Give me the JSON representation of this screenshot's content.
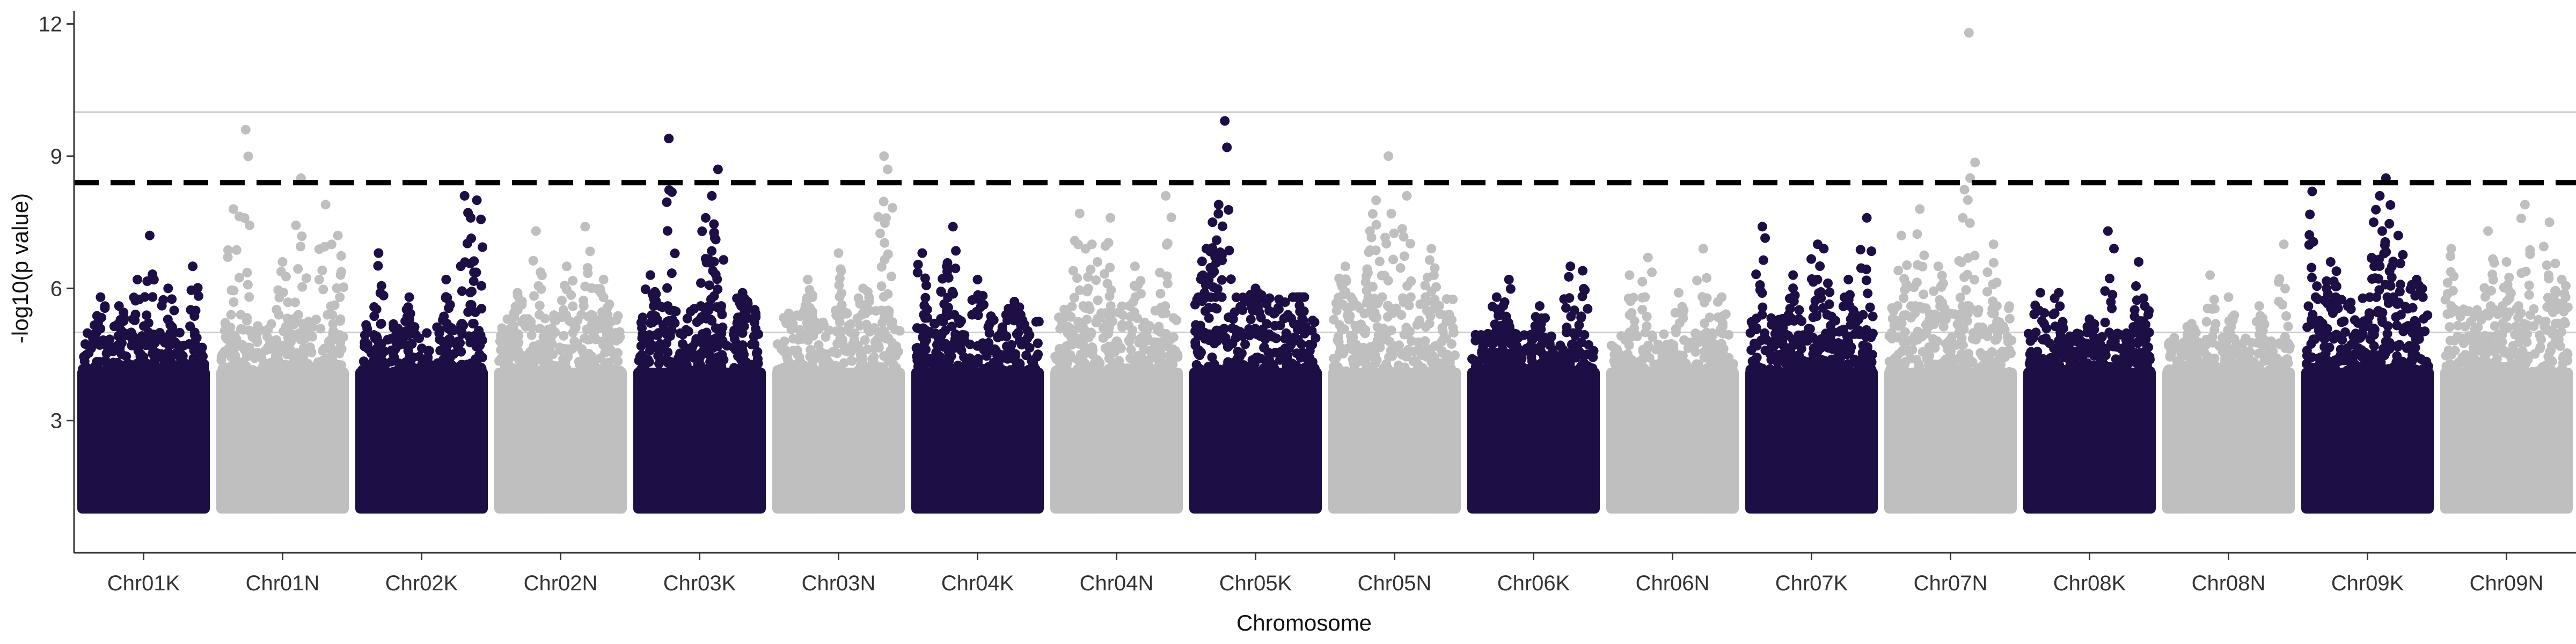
{
  "chart_data": {
    "type": "scatter",
    "title": "",
    "xlabel": "Chromosome",
    "ylabel": "-log10(p value)",
    "ylim": [
      0,
      12.3
    ],
    "yticks": [
      3,
      6,
      9,
      12
    ],
    "reference_lines": [
      5,
      10
    ],
    "threshold_line": 8.4,
    "grid": false,
    "legend": "none",
    "colors": {
      "dark": "#1d0f45",
      "light": "#bfbfbf",
      "threshold": "#000000",
      "reference": "#cccccc"
    },
    "categories": [
      "Chr01K",
      "Chr01N",
      "Chr02K",
      "Chr02N",
      "Chr03K",
      "Chr03N",
      "Chr04K",
      "Chr04N",
      "Chr05K",
      "Chr05N",
      "Chr06K",
      "Chr06N",
      "Chr07K",
      "Chr07N",
      "Chr08K",
      "Chr08N",
      "Chr09K",
      "Chr09N"
    ],
    "series": [
      {
        "category": "Chr01K",
        "color": "dark",
        "base_max": 5.0,
        "peak_max": 7.2,
        "top_points": [
          [
            0.15,
            5.8
          ],
          [
            0.3,
            5.6
          ],
          [
            0.45,
            6.2
          ],
          [
            0.55,
            7.2
          ],
          [
            0.7,
            6.0
          ],
          [
            0.9,
            6.5
          ]
        ]
      },
      {
        "category": "Chr01N",
        "color": "light",
        "base_max": 5.4,
        "peak_max": 9.6,
        "top_points": [
          [
            0.1,
            7.8
          ],
          [
            0.2,
            9.6
          ],
          [
            0.65,
            8.5
          ],
          [
            0.85,
            7.9
          ],
          [
            0.95,
            7.2
          ],
          [
            0.5,
            6.6
          ]
        ]
      },
      {
        "category": "Chr02K",
        "color": "dark",
        "base_max": 5.2,
        "peak_max": 8.1,
        "top_points": [
          [
            0.15,
            6.8
          ],
          [
            0.4,
            5.8
          ],
          [
            0.85,
            8.1
          ],
          [
            0.95,
            8.0
          ],
          [
            0.9,
            7.6
          ],
          [
            0.7,
            6.2
          ]
        ]
      },
      {
        "category": "Chr02N",
        "color": "light",
        "base_max": 5.4,
        "peak_max": 7.4,
        "top_points": [
          [
            0.3,
            7.3
          ],
          [
            0.7,
            7.4
          ],
          [
            0.55,
            6.5
          ],
          [
            0.85,
            6.2
          ],
          [
            0.15,
            5.9
          ]
        ]
      },
      {
        "category": "Chr03K",
        "color": "dark",
        "base_max": 5.6,
        "peak_max": 9.4,
        "top_points": [
          [
            0.25,
            9.4
          ],
          [
            0.65,
            8.7
          ],
          [
            0.6,
            8.1
          ],
          [
            0.55,
            7.6
          ],
          [
            0.1,
            6.3
          ],
          [
            0.85,
            5.9
          ]
        ]
      },
      {
        "category": "Chr03N",
        "color": "light",
        "base_max": 5.5,
        "peak_max": 9.0,
        "top_points": [
          [
            0.87,
            9.0
          ],
          [
            0.9,
            8.7
          ],
          [
            0.5,
            6.8
          ],
          [
            0.25,
            6.2
          ],
          [
            0.7,
            6.0
          ]
        ]
      },
      {
        "category": "Chr04K",
        "color": "dark",
        "base_max": 5.4,
        "peak_max": 7.4,
        "top_points": [
          [
            0.05,
            6.8
          ],
          [
            0.3,
            7.4
          ],
          [
            0.25,
            6.5
          ],
          [
            0.5,
            6.2
          ],
          [
            0.8,
            5.7
          ]
        ]
      },
      {
        "category": "Chr04N",
        "color": "light",
        "base_max": 5.6,
        "peak_max": 8.1,
        "top_points": [
          [
            0.2,
            7.7
          ],
          [
            0.45,
            7.6
          ],
          [
            0.9,
            8.1
          ],
          [
            0.3,
            7.0
          ],
          [
            0.65,
            6.5
          ]
        ]
      },
      {
        "category": "Chr05K",
        "color": "dark",
        "base_max": 5.8,
        "peak_max": 9.8,
        "top_points": [
          [
            0.25,
            9.8
          ],
          [
            0.2,
            7.9
          ],
          [
            0.15,
            7.5
          ],
          [
            0.1,
            6.9
          ],
          [
            0.5,
            6.0
          ],
          [
            0.85,
            5.8
          ]
        ]
      },
      {
        "category": "Chr05N",
        "color": "light",
        "base_max": 5.8,
        "peak_max": 9.0,
        "top_points": [
          [
            0.45,
            9.0
          ],
          [
            0.35,
            8.0
          ],
          [
            0.3,
            7.3
          ],
          [
            0.6,
            8.1
          ],
          [
            0.8,
            6.9
          ],
          [
            0.1,
            6.5
          ]
        ]
      },
      {
        "category": "Chr06K",
        "color": "dark",
        "base_max": 5.0,
        "peak_max": 6.5,
        "top_points": [
          [
            0.3,
            6.2
          ],
          [
            0.2,
            5.8
          ],
          [
            0.8,
            6.5
          ],
          [
            0.9,
            6.4
          ],
          [
            0.55,
            5.6
          ]
        ]
      },
      {
        "category": "Chr06N",
        "color": "light",
        "base_max": 5.0,
        "peak_max": 6.9,
        "top_points": [
          [
            0.15,
            6.3
          ],
          [
            0.3,
            6.7
          ],
          [
            0.75,
            6.9
          ],
          [
            0.55,
            5.9
          ],
          [
            0.9,
            5.8
          ]
        ]
      },
      {
        "category": "Chr07K",
        "color": "dark",
        "base_max": 5.4,
        "peak_max": 7.6,
        "top_points": [
          [
            0.1,
            7.4
          ],
          [
            0.55,
            7.0
          ],
          [
            0.6,
            6.9
          ],
          [
            0.95,
            7.6
          ],
          [
            0.35,
            6.3
          ],
          [
            0.8,
            6.2
          ]
        ]
      },
      {
        "category": "Chr07N",
        "color": "light",
        "base_max": 5.6,
        "peak_max": 11.8,
        "top_points": [
          [
            0.65,
            11.8
          ],
          [
            0.1,
            7.2
          ],
          [
            0.25,
            7.8
          ],
          [
            0.6,
            7.6
          ],
          [
            0.85,
            7.0
          ],
          [
            0.4,
            6.5
          ]
        ]
      },
      {
        "category": "Chr08K",
        "color": "dark",
        "base_max": 5.0,
        "peak_max": 7.3,
        "top_points": [
          [
            0.1,
            5.9
          ],
          [
            0.25,
            5.9
          ],
          [
            0.65,
            7.3
          ],
          [
            0.9,
            6.6
          ],
          [
            0.95,
            5.6
          ],
          [
            0.5,
            5.3
          ]
        ]
      },
      {
        "category": "Chr08N",
        "color": "light",
        "base_max": 4.9,
        "peak_max": 7.0,
        "top_points": [
          [
            0.35,
            6.3
          ],
          [
            0.5,
            5.8
          ],
          [
            0.75,
            5.6
          ],
          [
            0.95,
            7.0
          ],
          [
            0.2,
            5.2
          ]
        ]
      },
      {
        "category": "Chr09K",
        "color": "dark",
        "base_max": 5.8,
        "peak_max": 8.5,
        "top_points": [
          [
            0.05,
            8.2
          ],
          [
            0.65,
            8.5
          ],
          [
            0.6,
            8.1
          ],
          [
            0.55,
            7.5
          ],
          [
            0.2,
            6.6
          ],
          [
            0.75,
            7.2
          ],
          [
            0.9,
            6.2
          ]
        ]
      },
      {
        "category": "Chr09N",
        "color": "light",
        "base_max": 5.6,
        "peak_max": 7.9,
        "top_points": [
          [
            0.05,
            6.9
          ],
          [
            0.35,
            7.3
          ],
          [
            0.65,
            7.9
          ],
          [
            0.85,
            7.5
          ],
          [
            0.95,
            6.2
          ],
          [
            0.5,
            6.6
          ]
        ]
      }
    ]
  }
}
